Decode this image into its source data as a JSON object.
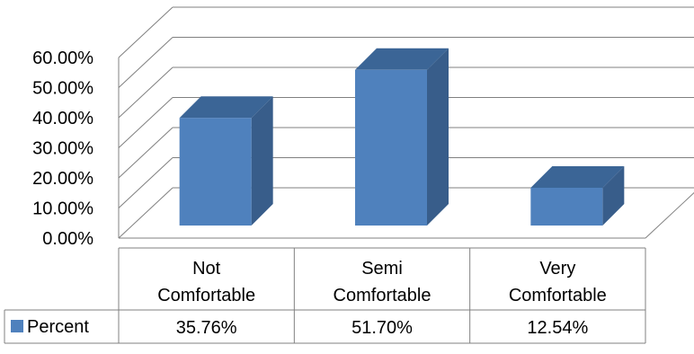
{
  "chart_data": {
    "type": "bar",
    "three_d": true,
    "categories": [
      [
        "Not",
        "Comfortable"
      ],
      [
        "Semi",
        "Comfortable"
      ],
      [
        "Very",
        "Comfortable"
      ]
    ],
    "series": [
      {
        "name": "Percent",
        "values": [
          35.76,
          51.7,
          12.54
        ],
        "value_labels": [
          "35.76%",
          "51.70%",
          "12.54%"
        ]
      }
    ],
    "y_ticks": [
      "0.00%",
      "10.00%",
      "20.00%",
      "30.00%",
      "40.00%",
      "50.00%",
      "60.00%"
    ],
    "ylim": [
      0,
      60
    ],
    "grid": true,
    "legend": "data-table-left",
    "data_table": true,
    "colors": {
      "bar_front": "#4F81BD",
      "bar_side": "#385D8A",
      "bar_top": "#3B6596",
      "grid": "#808080",
      "axis": "#808080",
      "table_border": "#808080"
    }
  }
}
